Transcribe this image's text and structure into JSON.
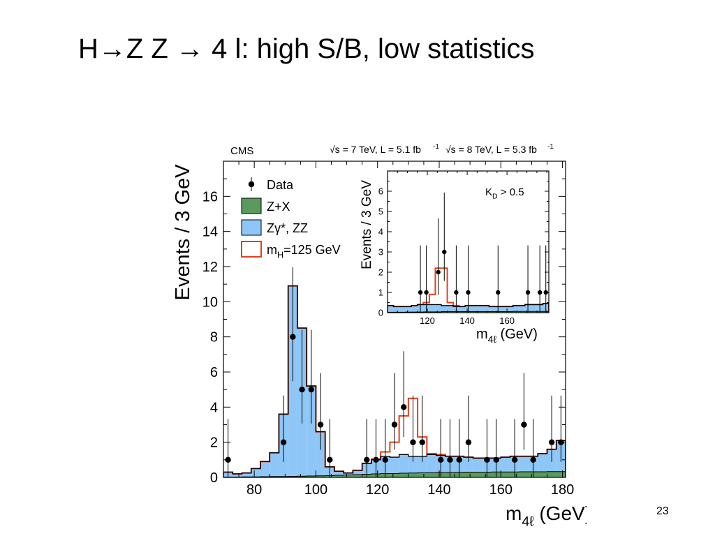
{
  "slide": {
    "title": "H→Z Z → 4 l: high S/B, low statistics",
    "page_number": "23"
  },
  "chart_data": [
    {
      "type": "bar",
      "panel": "main",
      "experiment_label": "CMS",
      "energy_label_7tev": "√s = 7 TeV, L = 5.1 fb",
      "energy_label_8tev": "√s = 8 TeV, L = 5.3 fb",
      "energy_label_exponent": "-1",
      "xlabel": "m",
      "xlabel_sub": "4ℓ",
      "xlabel_unit": "(GeV)",
      "ylabel": "Events / 3 GeV",
      "xlim": [
        70,
        181
      ],
      "ylim": [
        0,
        18
      ],
      "xticks": [
        80,
        100,
        120,
        140,
        160,
        180
      ],
      "yticks": [
        0,
        2,
        4,
        6,
        8,
        10,
        12,
        14,
        16
      ],
      "legend_position": "top-left",
      "legend": [
        {
          "label": "Data",
          "kind": "marker"
        },
        {
          "label": "Z+X",
          "kind": "fill",
          "color": "#5a9a5e"
        },
        {
          "label": "Zγ*, ZZ",
          "kind": "fill",
          "color": "#8ec7f7"
        },
        {
          "label": "m",
          "sub": "H",
          "suffix": "=125 GeV",
          "kind": "outline",
          "color": "#e2401b"
        }
      ],
      "bin_edges": [
        70,
        73,
        76,
        79,
        82,
        85,
        88,
        91,
        94,
        97,
        100,
        103,
        106,
        109,
        112,
        115,
        118,
        121,
        124,
        127,
        130,
        133,
        136,
        139,
        142,
        145,
        148,
        151,
        154,
        157,
        160,
        163,
        166,
        169,
        172,
        175,
        178,
        181
      ],
      "zx_values": [
        0.02,
        0.02,
        0.03,
        0.03,
        0.04,
        0.05,
        0.05,
        0.06,
        0.07,
        0.08,
        0.09,
        0.1,
        0.12,
        0.14,
        0.16,
        0.18,
        0.2,
        0.22,
        0.22,
        0.24,
        0.25,
        0.26,
        0.27,
        0.28,
        0.28,
        0.29,
        0.3,
        0.3,
        0.3,
        0.31,
        0.31,
        0.31,
        0.32,
        0.32,
        0.32,
        0.33,
        0.33
      ],
      "zz_plus_zx_values": [
        0.3,
        0.2,
        0.25,
        0.5,
        0.9,
        1.4,
        3.6,
        10.9,
        8.5,
        5.2,
        2.6,
        0.6,
        0.35,
        0.25,
        0.4,
        0.8,
        1.0,
        1.2,
        1.15,
        1.3,
        1.2,
        1.2,
        1.3,
        1.25,
        1.2,
        1.2,
        1.15,
        1.1,
        1.1,
        1.1,
        1.15,
        1.2,
        1.2,
        1.2,
        1.35,
        1.6,
        2.1
      ],
      "signal_total_values": [
        0.3,
        0.2,
        0.25,
        0.5,
        0.9,
        1.4,
        3.6,
        10.9,
        8.5,
        5.2,
        2.6,
        0.6,
        0.35,
        0.25,
        0.4,
        0.8,
        1.05,
        1.45,
        2.0,
        3.5,
        4.5,
        2.3,
        1.35,
        1.3,
        1.2,
        1.2,
        1.15,
        1.1,
        1.1,
        1.1,
        1.15,
        1.2,
        1.2,
        1.2,
        1.35,
        1.6,
        2.1
      ],
      "data_points": [
        {
          "x": 71.5,
          "y": 1
        },
        {
          "x": 89.5,
          "y": 2
        },
        {
          "x": 92.5,
          "y": 8
        },
        {
          "x": 95.5,
          "y": 5
        },
        {
          "x": 98.5,
          "y": 5
        },
        {
          "x": 101.5,
          "y": 3
        },
        {
          "x": 104.5,
          "y": 1
        },
        {
          "x": 116.5,
          "y": 1
        },
        {
          "x": 119.5,
          "y": 1
        },
        {
          "x": 122.5,
          "y": 1
        },
        {
          "x": 125.5,
          "y": 3
        },
        {
          "x": 128.5,
          "y": 4
        },
        {
          "x": 131.5,
          "y": 2
        },
        {
          "x": 134.5,
          "y": 2
        },
        {
          "x": 140.5,
          "y": 1
        },
        {
          "x": 143.5,
          "y": 1
        },
        {
          "x": 146.5,
          "y": 1
        },
        {
          "x": 149.5,
          "y": 2
        },
        {
          "x": 155.5,
          "y": 1
        },
        {
          "x": 158.5,
          "y": 1
        },
        {
          "x": 164.5,
          "y": 1
        },
        {
          "x": 167.5,
          "y": 3
        },
        {
          "x": 170.5,
          "y": 1
        },
        {
          "x": 176.5,
          "y": 2
        },
        {
          "x": 179.5,
          "y": 2
        },
        {
          "x": 182.5,
          "y": 3
        }
      ]
    },
    {
      "type": "bar",
      "panel": "inset",
      "annotation": "K",
      "annotation_sub": "D",
      "annotation_suffix": " > 0.5",
      "xlabel": "m",
      "xlabel_sub": "4ℓ",
      "xlabel_unit": "(GeV)",
      "ylabel": "Events / 3 GeV",
      "xlim": [
        100,
        181
      ],
      "ylim": [
        0,
        7
      ],
      "xticks": [
        120,
        140,
        160
      ],
      "yticks": [
        0,
        1,
        2,
        3,
        4,
        5,
        6
      ],
      "bin_edges": [
        100,
        103,
        106,
        109,
        112,
        115,
        118,
        121,
        124,
        127,
        130,
        133,
        136,
        139,
        142,
        145,
        148,
        151,
        154,
        157,
        160,
        163,
        166,
        169,
        172,
        175,
        178,
        181
      ],
      "zx_values": [
        0.02,
        0.02,
        0.02,
        0.03,
        0.03,
        0.03,
        0.04,
        0.04,
        0.04,
        0.05,
        0.05,
        0.05,
        0.05,
        0.05,
        0.05,
        0.05,
        0.05,
        0.05,
        0.05,
        0.05,
        0.05,
        0.06,
        0.06,
        0.06,
        0.06,
        0.06,
        0.06
      ],
      "zz_plus_zx_values": [
        0.35,
        0.3,
        0.3,
        0.3,
        0.35,
        0.4,
        0.4,
        0.4,
        0.4,
        0.35,
        0.35,
        0.3,
        0.3,
        0.35,
        0.35,
        0.35,
        0.35,
        0.3,
        0.3,
        0.3,
        0.3,
        0.35,
        0.35,
        0.4,
        0.4,
        0.4,
        0.45
      ],
      "signal_total_values": [
        0.35,
        0.3,
        0.3,
        0.3,
        0.35,
        0.4,
        0.5,
        0.9,
        2.2,
        2.2,
        0.5,
        0.35,
        0.3,
        0.35,
        0.35,
        0.35,
        0.35,
        0.3,
        0.3,
        0.3,
        0.3,
        0.35,
        0.35,
        0.4,
        0.4,
        0.4,
        0.45
      ],
      "data_points": [
        {
          "x": 116.5,
          "y": 1
        },
        {
          "x": 119.5,
          "y": 1
        },
        {
          "x": 125.5,
          "y": 2
        },
        {
          "x": 128.5,
          "y": 3
        },
        {
          "x": 134.5,
          "y": 1
        },
        {
          "x": 140.5,
          "y": 1
        },
        {
          "x": 155.5,
          "y": 1
        },
        {
          "x": 170.5,
          "y": 1
        },
        {
          "x": 176.5,
          "y": 1
        },
        {
          "x": 179.5,
          "y": 1
        }
      ]
    }
  ]
}
